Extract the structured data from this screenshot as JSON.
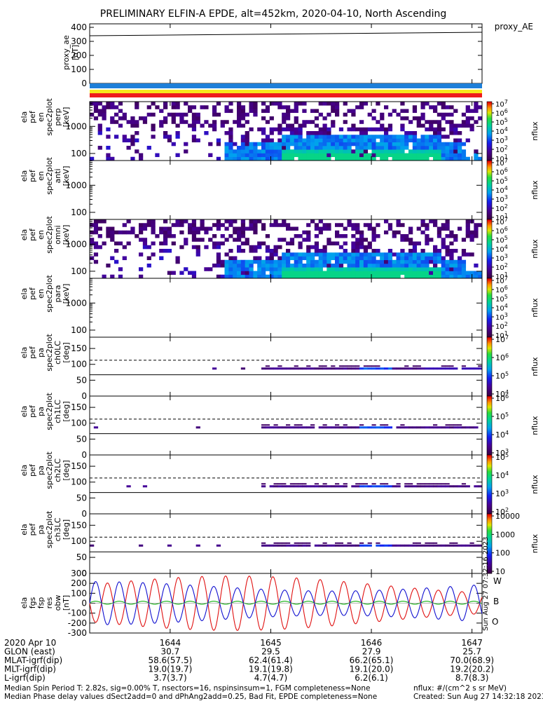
{
  "title": "PRELIMINARY ELFIN-A EPDE, alt=452km, 2020-04-10, North Ascending",
  "legend": {
    "proxy": "proxy_AE"
  },
  "colors": {
    "bar_blue": "#1e7fd8",
    "bar_yellow": "#f7e81c",
    "bar_red": "#ee1c1c",
    "trace_w": "#e01010",
    "trace_b": "#10b010",
    "trace_o": "#1010d0"
  },
  "chart_data": [
    {
      "type": "line",
      "panel": "proxy_ae",
      "ylabel": "proxy_ae [nT]",
      "ylim": [
        0,
        400
      ],
      "ticks": [
        "400",
        "300",
        "200",
        "100",
        "0"
      ],
      "x": [
        "1643",
        "1647"
      ],
      "values": [
        340,
        365
      ]
    },
    {
      "type": "heatmap",
      "panel": "spec-perp",
      "ylabel": "ela pef en spec2plot perp [keV]",
      "ticks": [
        "1000",
        "100"
      ],
      "colorbar_label": "nflux",
      "colorbar_ticks": [
        "10",
        "10",
        "10",
        "10",
        "10",
        "10",
        "10"
      ],
      "colorbar_exp": [
        "7",
        "6",
        "5",
        "4",
        "3",
        "2",
        "1"
      ]
    },
    {
      "type": "heatmap",
      "panel": "spec-anti",
      "ylabel": "ela pef en spec2plot anti [keV]",
      "ticks": [
        "1000",
        "100"
      ],
      "colorbar_label": "nflux",
      "colorbar_ticks": [
        "10",
        "10",
        "10",
        "10",
        "10",
        "10",
        "10"
      ],
      "colorbar_exp": [
        "7",
        "6",
        "5",
        "4",
        "3",
        "2",
        "1"
      ]
    },
    {
      "type": "heatmap",
      "panel": "spec-omni",
      "ylabel": "ela pef en spec2plot omni [keV]",
      "ticks": [
        "1000",
        "100"
      ],
      "colorbar_label": "nflux",
      "colorbar_ticks": [
        "10",
        "10",
        "10",
        "10",
        "10",
        "10",
        "10"
      ],
      "colorbar_exp": [
        "7",
        "6",
        "5",
        "4",
        "3",
        "2",
        "1"
      ]
    },
    {
      "type": "heatmap",
      "panel": "spec-para",
      "ylabel": "ela pef en spec2plot para [keV]",
      "ticks": [
        "1000",
        "100"
      ],
      "colorbar_label": "nflux",
      "colorbar_ticks": [
        "10",
        "10",
        "10",
        "10",
        "10",
        "10",
        "10"
      ],
      "colorbar_exp": [
        "7",
        "6",
        "5",
        "4",
        "3",
        "2",
        "1"
      ]
    },
    {
      "type": "heatmap",
      "panel": "pa-ch0",
      "ylabel": "ela pef pa spec2plot ch0LC [deg]",
      "ylim": [
        0,
        180
      ],
      "ticks": [
        "150",
        "100",
        "50",
        "0"
      ],
      "colorbar_label": "nflux",
      "colorbar_ticks": [
        "10",
        "10",
        "10",
        "10"
      ],
      "colorbar_exp": [
        "7",
        "6",
        "5",
        "4"
      ]
    },
    {
      "type": "heatmap",
      "panel": "pa-ch1",
      "ylabel": "ela pef pa spec2plot ch1LC [deg]",
      "ylim": [
        0,
        180
      ],
      "ticks": [
        "150",
        "100",
        "50",
        "0"
      ],
      "colorbar_label": "nflux",
      "colorbar_ticks": [
        "10",
        "10",
        "10",
        "10"
      ],
      "colorbar_exp": [
        "6",
        "5",
        "4",
        "3"
      ]
    },
    {
      "type": "heatmap",
      "panel": "pa-ch2",
      "ylabel": "ela pef pa spec2plot ch2LC [deg]",
      "ylim": [
        0,
        180
      ],
      "ticks": [
        "150",
        "100",
        "50",
        "0"
      ],
      "colorbar_label": "nflux",
      "colorbar_ticks": [
        "10",
        "10",
        "10",
        "10"
      ],
      "colorbar_exp": [
        "5",
        "4",
        "3",
        "2"
      ]
    },
    {
      "type": "heatmap",
      "panel": "pa-ch3",
      "ylabel": "ela pef pa spec2plot ch3LC [deg]",
      "ylim": [
        0,
        180
      ],
      "ticks": [
        "150",
        "100",
        "50",
        "0"
      ],
      "colorbar_label": "nflux",
      "colorbar_ticks": [
        "10000",
        "1000",
        "100",
        "10"
      ]
    },
    {
      "type": "line",
      "panel": "fgs",
      "ylabel": "ela fgs fsp res obw [nT]",
      "ylim": [
        -300,
        300
      ],
      "ticks": [
        "300",
        "200",
        "100",
        "0",
        "-100",
        "-200",
        "-300"
      ],
      "series": [
        {
          "name": "W",
          "amplitude": 220,
          "period_min": 0.235
        },
        {
          "name": "B",
          "amplitude": 25,
          "period_min": 0.235
        },
        {
          "name": "O",
          "amplitude": 190,
          "period_min": 0.235
        }
      ],
      "side_text": "Sun Aug 27 07:32:16 2023"
    }
  ],
  "xaxis": {
    "rows": [
      {
        "label": "2020 Apr 10",
        "values": [
          "1644",
          "1645",
          "1646",
          "1647"
        ]
      },
      {
        "label": "GLON (east)",
        "values": [
          "30.7",
          "29.5",
          "27.9",
          "25.7"
        ]
      },
      {
        "label": "MLAT-igrf(dip)",
        "values": [
          "58.6(57.5)",
          "62.4(61.4)",
          "66.2(65.1)",
          "70.0(68.9)"
        ]
      },
      {
        "label": "MLT-igrf(dip)",
        "values": [
          "19.0(19.7)",
          "19.1(19.8)",
          "19.1(20.0)",
          "19.2(20.2)"
        ]
      },
      {
        "label": "L-igrf(dip)",
        "values": [
          "3.7(3.7)",
          "4.7(4.7)",
          "6.2(6.1)",
          "8.7(8.3)"
        ]
      }
    ]
  },
  "footer": {
    "line1": "Median Spin Period T: 2.82s, sig=0.00% T, nsectors=16, nspinsinsum=1, FGM completeness=None",
    "line2": "Median Phase delay values dSect2add=0 and dPhAng2add=0.25, Bad Fit, EPDE completeness=None",
    "right1": "nflux: #/(cm^2 s sr MeV)",
    "right2": "Created: Sun Aug 27 14:32:18 2023"
  }
}
